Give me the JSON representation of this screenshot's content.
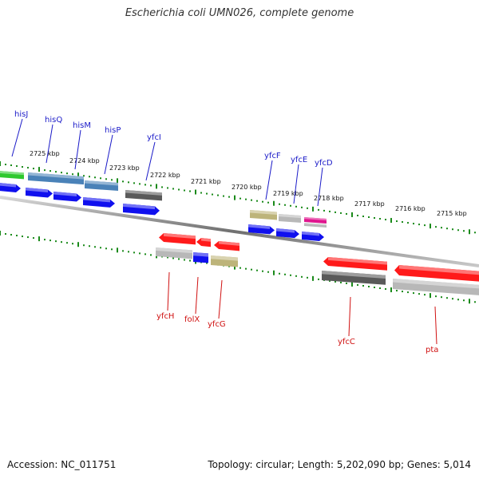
{
  "title": "Escherichia coli UMN026, complete genome",
  "footer": {
    "accession": "Accession: NC_011751",
    "topology": "Topology: circular; Length: 5,202,090 bp; Genes: 5,014"
  },
  "colors": {
    "axis": "#808080",
    "tick": "#1a8a1a",
    "forward_label": "#1a1ac8",
    "reverse_label": "#d01010",
    "gene_red": "#ff1a1a",
    "gene_blue": "#1010ee",
    "gene_steel": "#4a82b8",
    "gene_gray": "#5a5a5a",
    "gene_lightgray": "#b8b8b8",
    "gene_khaki": "#bdb47a",
    "gene_magenta": "#e0158e",
    "gene_green": "#2ec82e"
  },
  "kbp_labels": [
    "2725 kbp",
    "2724 kbp",
    "2723 kbp",
    "2722 kbp",
    "2721 kbp",
    "2720 kbp",
    "2719 kbp",
    "2718 kbp",
    "2717 kbp",
    "2716 kbp",
    "2715 kbp"
  ],
  "forward_genes": [
    "hisJ",
    "hisQ",
    "hisM",
    "hisP",
    "yfcI",
    "yfcF",
    "yfcE",
    "yfcD"
  ],
  "reverse_genes": [
    "yfcH",
    "folX",
    "yfcG",
    "yfcC",
    "pta"
  ]
}
